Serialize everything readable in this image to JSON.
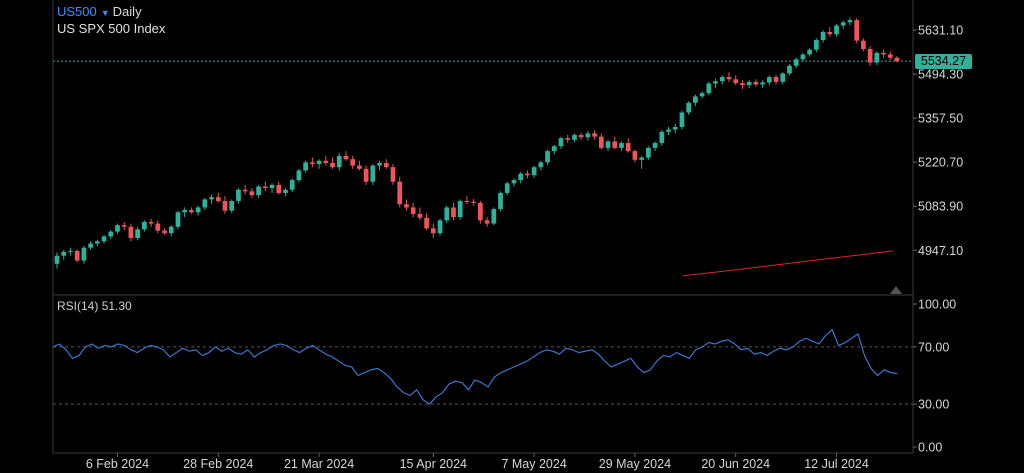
{
  "header": {
    "symbol": "US500",
    "timeframe": "Daily",
    "description": "US SPX 500 Index",
    "rsi_label": "RSI(14)",
    "rsi_value": "51.30",
    "last_price": "5534.27"
  },
  "colors": {
    "up": "#2bb39c",
    "down": "#f0545a",
    "ma": "#e02424",
    "rsi": "#3d7fdc",
    "grid": "#2a2a2a"
  },
  "chart_data": [
    {
      "type": "candlestick",
      "title": "",
      "y_ticks": [
        "5631.10",
        "5494.30",
        "5357.50",
        "5220.70",
        "5083.90",
        "4947.10"
      ],
      "y_tick_values": [
        5631.1,
        5494.3,
        5357.5,
        5220.7,
        5083.9,
        4947.1
      ],
      "ylim": [
        4900,
        5700
      ],
      "x_ticks": [
        "6 Feb 2024",
        "28 Feb 2024",
        "21 Mar 2024",
        "15 Apr 2024",
        "7 May 2024",
        "29 May 2024",
        "20 Jun 2024",
        "12 Jul 2024"
      ],
      "x_tick_index": [
        9,
        24,
        39,
        56,
        71,
        86,
        101,
        116
      ],
      "last_price": 5534.27,
      "ohlc": [
        [
          4905,
          4940,
          4890,
          4930
        ],
        [
          4930,
          4948,
          4918,
          4942
        ],
        [
          4942,
          4955,
          4930,
          4945
        ],
        [
          4945,
          4950,
          4910,
          4915
        ],
        [
          4915,
          4960,
          4905,
          4955
        ],
        [
          4955,
          4975,
          4948,
          4968
        ],
        [
          4968,
          4980,
          4960,
          4975
        ],
        [
          4975,
          4995,
          4968,
          4990
        ],
        [
          4990,
          5010,
          4982,
          5005
        ],
        [
          5005,
          5030,
          4998,
          5025
        ],
        [
          5025,
          5035,
          5010,
          5020
        ],
        [
          5020,
          5030,
          4975,
          4985
        ],
        [
          4985,
          5020,
          4978,
          5012
        ],
        [
          5012,
          5040,
          5005,
          5035
        ],
        [
          5035,
          5045,
          5020,
          5030
        ],
        [
          5030,
          5040,
          5000,
          5008
        ],
        [
          5008,
          5015,
          4995,
          5000
        ],
        [
          5000,
          5025,
          4990,
          5020
        ],
        [
          5020,
          5070,
          5012,
          5065
        ],
        [
          5065,
          5080,
          5050,
          5072
        ],
        [
          5072,
          5080,
          5060,
          5065
        ],
        [
          5065,
          5085,
          5055,
          5080
        ],
        [
          5080,
          5110,
          5072,
          5105
        ],
        [
          5105,
          5120,
          5090,
          5112
        ],
        [
          5112,
          5125,
          5095,
          5100
        ],
        [
          5100,
          5115,
          5060,
          5070
        ],
        [
          5070,
          5105,
          5062,
          5100
        ],
        [
          5100,
          5140,
          5092,
          5135
        ],
        [
          5135,
          5150,
          5120,
          5130
        ],
        [
          5130,
          5140,
          5110,
          5118
        ],
        [
          5118,
          5150,
          5110,
          5145
        ],
        [
          5145,
          5160,
          5130,
          5140
        ],
        [
          5140,
          5155,
          5125,
          5150
        ],
        [
          5150,
          5160,
          5120,
          5125
        ],
        [
          5125,
          5140,
          5115,
          5135
        ],
        [
          5135,
          5170,
          5128,
          5165
        ],
        [
          5165,
          5200,
          5158,
          5195
        ],
        [
          5195,
          5225,
          5188,
          5220
        ],
        [
          5220,
          5235,
          5205,
          5215
        ],
        [
          5215,
          5230,
          5200,
          5225
        ],
        [
          5225,
          5240,
          5210,
          5218
        ],
        [
          5218,
          5235,
          5200,
          5205
        ],
        [
          5205,
          5250,
          5195,
          5240
        ],
        [
          5240,
          5255,
          5225,
          5230
        ],
        [
          5230,
          5240,
          5200,
          5210
        ],
        [
          5210,
          5225,
          5195,
          5200
        ],
        [
          5200,
          5210,
          5150,
          5160
        ],
        [
          5160,
          5215,
          5150,
          5210
        ],
        [
          5210,
          5225,
          5195,
          5218
        ],
        [
          5218,
          5230,
          5200,
          5205
        ],
        [
          5205,
          5215,
          5150,
          5160
        ],
        [
          5160,
          5175,
          5080,
          5090
        ],
        [
          5090,
          5105,
          5070,
          5080
        ],
        [
          5080,
          5095,
          5050,
          5060
        ],
        [
          5060,
          5080,
          5040,
          5048
        ],
        [
          5048,
          5062,
          5010,
          5015
        ],
        [
          5015,
          5030,
          4985,
          5000
        ],
        [
          5000,
          5045,
          4992,
          5040
        ],
        [
          5040,
          5085,
          5032,
          5080
        ],
        [
          5080,
          5095,
          5040,
          5050
        ],
        [
          5050,
          5105,
          5042,
          5100
        ],
        [
          5100,
          5115,
          5090,
          5098
        ],
        [
          5098,
          5106,
          5085,
          5094
        ],
        [
          5094,
          5100,
          5030,
          5040
        ],
        [
          5040,
          5050,
          5020,
          5030
        ],
        [
          5030,
          5080,
          5025,
          5075
        ],
        [
          5075,
          5130,
          5068,
          5125
        ],
        [
          5125,
          5160,
          5118,
          5155
        ],
        [
          5155,
          5170,
          5145,
          5165
        ],
        [
          5165,
          5190,
          5155,
          5185
        ],
        [
          5185,
          5195,
          5170,
          5180
        ],
        [
          5180,
          5210,
          5172,
          5205
        ],
        [
          5205,
          5225,
          5195,
          5220
        ],
        [
          5220,
          5260,
          5212,
          5255
        ],
        [
          5255,
          5275,
          5245,
          5270
        ],
        [
          5270,
          5300,
          5262,
          5295
        ],
        [
          5295,
          5305,
          5280,
          5290
        ],
        [
          5290,
          5310,
          5282,
          5305
        ],
        [
          5305,
          5312,
          5290,
          5298
        ],
        [
          5298,
          5318,
          5288,
          5310
        ],
        [
          5310,
          5320,
          5290,
          5300
        ],
        [
          5300,
          5310,
          5260,
          5265
        ],
        [
          5265,
          5290,
          5255,
          5285
        ],
        [
          5285,
          5300,
          5260,
          5265
        ],
        [
          5265,
          5285,
          5255,
          5280
        ],
        [
          5280,
          5295,
          5250,
          5255
        ],
        [
          5255,
          5260,
          5220,
          5228
        ],
        [
          5228,
          5240,
          5200,
          5235
        ],
        [
          5235,
          5270,
          5228,
          5265
        ],
        [
          5265,
          5285,
          5255,
          5280
        ],
        [
          5280,
          5320,
          5272,
          5315
        ],
        [
          5315,
          5330,
          5305,
          5322
        ],
        [
          5322,
          5340,
          5310,
          5330
        ],
        [
          5330,
          5380,
          5322,
          5375
        ],
        [
          5375,
          5410,
          5368,
          5405
        ],
        [
          5405,
          5430,
          5395,
          5425
        ],
        [
          5425,
          5440,
          5418,
          5435
        ],
        [
          5435,
          5470,
          5428,
          5465
        ],
        [
          5465,
          5480,
          5450,
          5472
        ],
        [
          5472,
          5490,
          5462,
          5485
        ],
        [
          5485,
          5500,
          5470,
          5478
        ],
        [
          5478,
          5490,
          5460,
          5466
        ],
        [
          5466,
          5475,
          5448,
          5460
        ],
        [
          5460,
          5475,
          5450,
          5470
        ],
        [
          5470,
          5478,
          5455,
          5462
        ],
        [
          5462,
          5475,
          5452,
          5468
        ],
        [
          5468,
          5490,
          5460,
          5485
        ],
        [
          5485,
          5492,
          5462,
          5470
        ],
        [
          5470,
          5500,
          5462,
          5496
        ],
        [
          5496,
          5525,
          5490,
          5520
        ],
        [
          5520,
          5545,
          5512,
          5540
        ],
        [
          5540,
          5560,
          5532,
          5555
        ],
        [
          5555,
          5575,
          5548,
          5570
        ],
        [
          5570,
          5605,
          5562,
          5600
        ],
        [
          5600,
          5630,
          5592,
          5625
        ],
        [
          5625,
          5640,
          5610,
          5618
        ],
        [
          5618,
          5650,
          5610,
          5645
        ],
        [
          5645,
          5660,
          5635,
          5655
        ],
        [
          5655,
          5670,
          5645,
          5662
        ],
        [
          5662,
          5668,
          5590,
          5598
        ],
        [
          5598,
          5605,
          5565,
          5572
        ],
        [
          5572,
          5580,
          5520,
          5530
        ],
        [
          5530,
          5565,
          5522,
          5560
        ],
        [
          5560,
          5570,
          5545,
          5555
        ],
        [
          5555,
          5565,
          5538,
          5545
        ],
        [
          5545,
          5550,
          5530,
          5534
        ]
      ],
      "ma": [
        4868,
        4880,
        4893,
        4906,
        4919,
        4932,
        4945
      ]
    },
    {
      "type": "line",
      "title": "",
      "y_ticks": [
        "100.00",
        "70.00",
        "30.00",
        "0.00"
      ],
      "y_tick_values": [
        100,
        70,
        30,
        0
      ],
      "ylim": [
        0,
        100
      ],
      "levels": [
        70,
        30
      ],
      "series": [
        {
          "name": "",
          "values": [
            70,
            72,
            68,
            62,
            64,
            70,
            72,
            69,
            71,
            70,
            72,
            71,
            68,
            66,
            69,
            71,
            70,
            68,
            63,
            66,
            69,
            67,
            68,
            64,
            66,
            70,
            67,
            69,
            66,
            65,
            68,
            63,
            66,
            68,
            71,
            72,
            71,
            68,
            66,
            69,
            71,
            68,
            65,
            63,
            60,
            57,
            56,
            50,
            52,
            54,
            55,
            52,
            48,
            42,
            38,
            36,
            40,
            33,
            30,
            35,
            38,
            44,
            46,
            45,
            40,
            47,
            45,
            42,
            49,
            52,
            54,
            56,
            58,
            60,
            63,
            66,
            68,
            67,
            65,
            69,
            68,
            66,
            67,
            68,
            65,
            60,
            56,
            58,
            60,
            62,
            56,
            52,
            54,
            60,
            64,
            63,
            66,
            64,
            62,
            68,
            70,
            73,
            72,
            74,
            75,
            72,
            68,
            69,
            65,
            66,
            64,
            67,
            69,
            68,
            70,
            74,
            76,
            74,
            72,
            78,
            82,
            71,
            73,
            76,
            79,
            64,
            55,
            50,
            54,
            52,
            51.3
          ]
        }
      ]
    }
  ]
}
